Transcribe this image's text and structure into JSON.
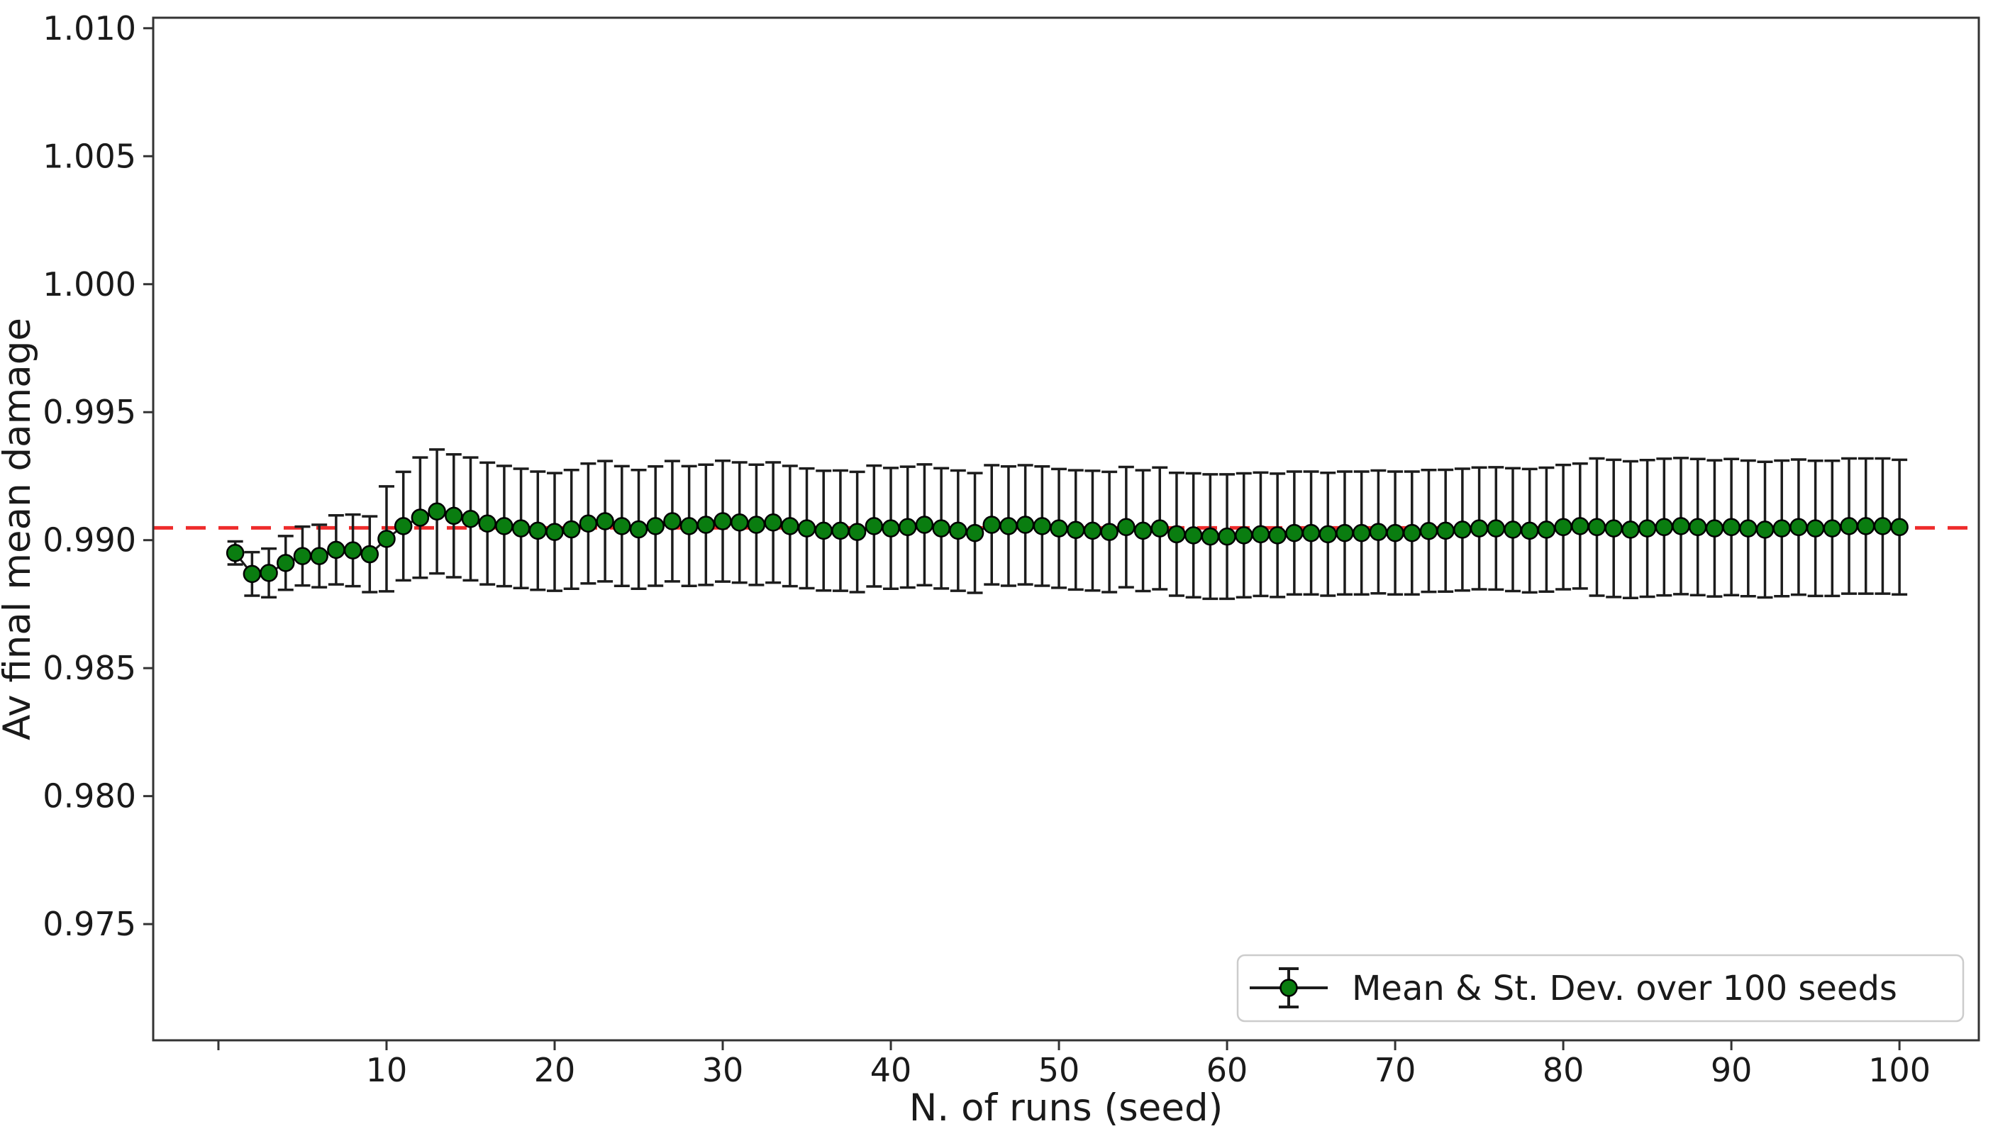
{
  "chart_data": {
    "type": "errorbar-line",
    "title": "",
    "xlabel": "N. of runs (seed)",
    "ylabel": "Av final mean damage",
    "grid": false,
    "legend": {
      "position": "lower right",
      "entries": [
        {
          "label": "Mean & St. Dev. over 100 seeds",
          "marker": "errorbar-circle"
        }
      ]
    },
    "xlim": [
      -3.88,
      104.72
    ],
    "ylim": [
      0.97046,
      1.01041
    ],
    "xticks": {
      "values": [
        0,
        10,
        20,
        30,
        40,
        50,
        60,
        70,
        80,
        90,
        100
      ],
      "labels": [
        "",
        "10",
        "20",
        "30",
        "40",
        "50",
        "60",
        "70",
        "80",
        "90",
        "100"
      ]
    },
    "yticks": {
      "values": [
        0.975,
        0.98,
        0.985,
        0.99,
        0.995,
        1.0,
        1.005,
        1.01
      ],
      "labels": [
        "0.975",
        "0.980",
        "0.985",
        "0.990",
        "0.995",
        "1.000",
        "1.005",
        "1.010"
      ]
    },
    "reference_line": {
      "y": 0.99048,
      "style": "dashed",
      "color": "#ee2c2c"
    },
    "colors": {
      "marker_fill": "#0a7d10",
      "marker_edge": "#000000",
      "errorbar": "#1c1c1c",
      "line": "#1c1c1c",
      "spine": "#333333"
    },
    "series": [
      {
        "name": "Mean & St. Dev. over 100 seeds",
        "x": [
          1,
          2,
          3,
          4,
          5,
          6,
          7,
          8,
          9,
          10,
          11,
          12,
          13,
          14,
          15,
          16,
          17,
          18,
          19,
          20,
          21,
          22,
          23,
          24,
          25,
          26,
          27,
          28,
          29,
          30,
          31,
          32,
          33,
          34,
          35,
          36,
          37,
          38,
          39,
          40,
          41,
          42,
          43,
          44,
          45,
          46,
          47,
          48,
          49,
          50,
          51,
          52,
          53,
          54,
          55,
          56,
          57,
          58,
          59,
          60,
          61,
          62,
          63,
          64,
          65,
          66,
          67,
          68,
          69,
          70,
          71,
          72,
          73,
          74,
          75,
          76,
          77,
          78,
          79,
          80,
          81,
          82,
          83,
          84,
          85,
          86,
          87,
          88,
          89,
          90,
          91,
          92,
          93,
          94,
          95,
          96,
          97,
          98,
          99,
          100
        ],
        "mean": [
          0.9895,
          0.98868,
          0.98872,
          0.98911,
          0.98938,
          0.98938,
          0.98962,
          0.9896,
          0.98945,
          0.99005,
          0.99055,
          0.99088,
          0.99112,
          0.99095,
          0.99083,
          0.99065,
          0.99055,
          0.99046,
          0.99037,
          0.99032,
          0.99042,
          0.99065,
          0.99074,
          0.99055,
          0.99042,
          0.99055,
          0.99074,
          0.99055,
          0.9906,
          0.99074,
          0.99069,
          0.9906,
          0.99069,
          0.99055,
          0.99046,
          0.99037,
          0.99037,
          0.99032,
          0.99055,
          0.99046,
          0.99051,
          0.9906,
          0.99046,
          0.99037,
          0.99028,
          0.9906,
          0.99055,
          0.9906,
          0.99055,
          0.99046,
          0.9904,
          0.99037,
          0.99032,
          0.99051,
          0.99037,
          0.99046,
          0.99023,
          0.99019,
          0.99014,
          0.99014,
          0.99019,
          0.99023,
          0.99019,
          0.99028,
          0.99028,
          0.99023,
          0.99028,
          0.99028,
          0.99032,
          0.99028,
          0.99028,
          0.99036,
          0.99037,
          0.99041,
          0.99046,
          0.99046,
          0.99041,
          0.99037,
          0.99041,
          0.99051,
          0.99055,
          0.99051,
          0.99046,
          0.99041,
          0.99046,
          0.99051,
          0.99055,
          0.99051,
          0.99046,
          0.99051,
          0.99046,
          0.99041,
          0.99046,
          0.99051,
          0.99046,
          0.99046,
          0.99055,
          0.99055,
          0.99055,
          0.99051
        ],
        "std": [
          0.00045,
          0.00085,
          0.00095,
          0.00105,
          0.00115,
          0.00122,
          0.00135,
          0.0014,
          0.00148,
          0.00205,
          0.00212,
          0.00235,
          0.00242,
          0.0024,
          0.0024,
          0.00238,
          0.00235,
          0.00233,
          0.00231,
          0.0023,
          0.00232,
          0.00234,
          0.00235,
          0.00234,
          0.00232,
          0.00233,
          0.00235,
          0.00234,
          0.00235,
          0.00236,
          0.00235,
          0.00235,
          0.00235,
          0.00235,
          0.00234,
          0.00234,
          0.00235,
          0.00235,
          0.00236,
          0.00236,
          0.00236,
          0.00236,
          0.00235,
          0.00235,
          0.00234,
          0.00233,
          0.00233,
          0.00233,
          0.00233,
          0.00232,
          0.00233,
          0.00234,
          0.00235,
          0.00235,
          0.00236,
          0.00238,
          0.0024,
          0.00242,
          0.00243,
          0.00243,
          0.00242,
          0.00241,
          0.00241,
          0.0024,
          0.0024,
          0.0024,
          0.0024,
          0.0024,
          0.0024,
          0.0024,
          0.0024,
          0.00238,
          0.00238,
          0.00238,
          0.00238,
          0.00239,
          0.0024,
          0.00241,
          0.00242,
          0.00243,
          0.00244,
          0.00268,
          0.00268,
          0.00267,
          0.00267,
          0.00267,
          0.00266,
          0.00266,
          0.00266,
          0.00266,
          0.00265,
          0.00265,
          0.00265,
          0.00264,
          0.00264,
          0.00264,
          0.00264,
          0.00264,
          0.00264,
          0.00263
        ]
      }
    ]
  }
}
